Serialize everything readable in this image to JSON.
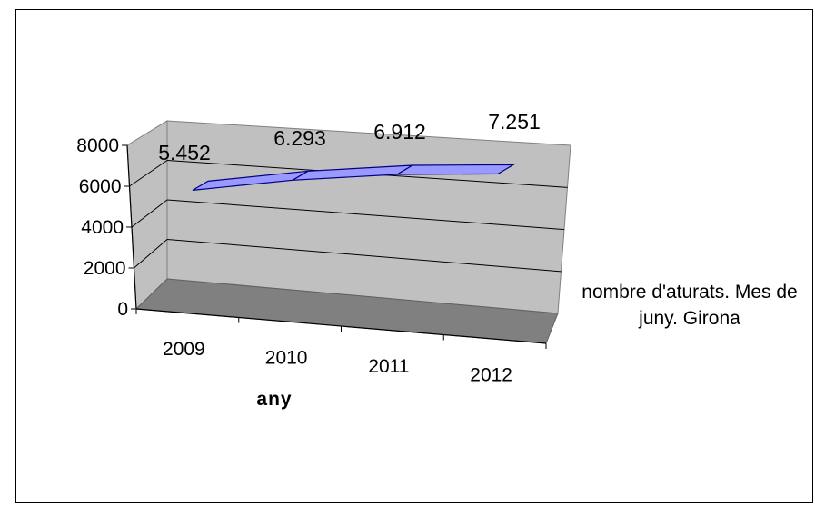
{
  "chart_data": {
    "type": "line",
    "categories": [
      "2009",
      "2010",
      "2011",
      "2012"
    ],
    "series": [
      {
        "name": "nombre d'aturats. Mes de juny. Girona",
        "values": [
          5452,
          6293,
          6912,
          7251
        ]
      }
    ],
    "data_labels": [
      "5.452",
      "6.293",
      "6.912",
      "7.251"
    ],
    "xlabel": "any",
    "ylabel": "",
    "ylim": [
      0,
      8000
    ],
    "yticks": [
      "0",
      "2000",
      "4000",
      "6000",
      "8000"
    ],
    "grid": true,
    "legend_position": "right",
    "style": "3d",
    "colors": {
      "series": "#9999ff",
      "wall": "#c0c0c0",
      "floor": "#808080"
    }
  }
}
